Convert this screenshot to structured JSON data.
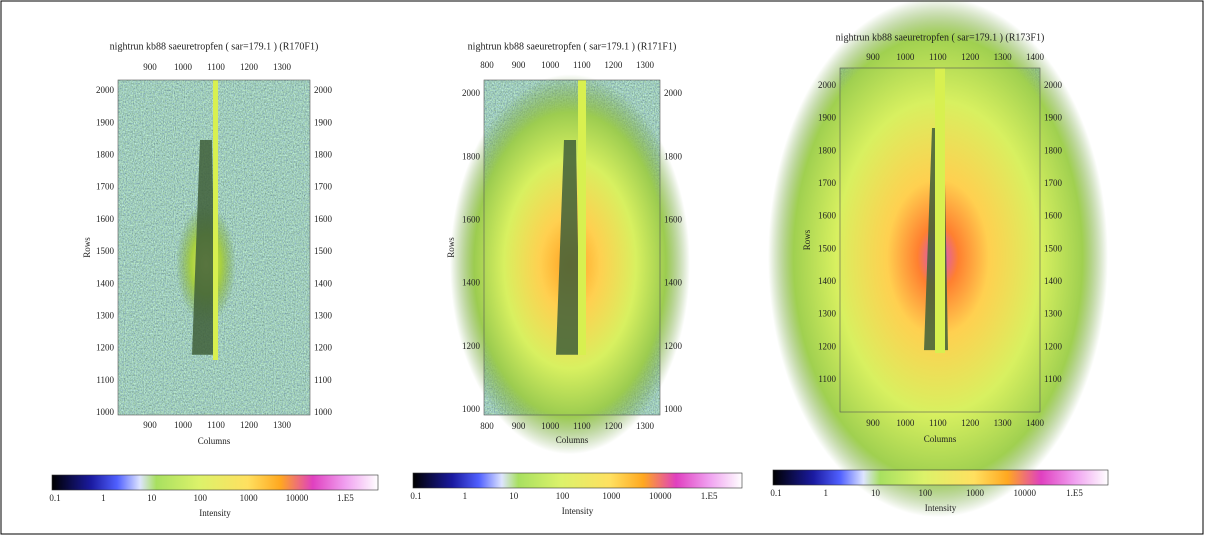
{
  "panels": [
    {
      "title": "nightrun kb88 saeuretropfen ( sar=179.1 ) (R170F1)",
      "x_label": "Columns",
      "y_label": "Rows",
      "x_ticks": [
        900,
        1000,
        1100,
        1200,
        1300
      ],
      "y_ticks": [
        2000,
        1900,
        1800,
        1700,
        1600,
        1500,
        1400,
        1300,
        1200,
        1100,
        1000
      ],
      "colorbar_labels": [
        "0.1",
        "1",
        "10",
        "100",
        "1000",
        "10000",
        "1.E5"
      ],
      "colorbar_title": "Intensity"
    },
    {
      "title": "nightrun kb88 saeuretropfen ( sar=179.1 ) (R171F1)",
      "x_label": "Columns",
      "y_label": "Rows",
      "x_ticks": [
        800,
        900,
        1000,
        1100,
        1200,
        1300
      ],
      "y_ticks": [
        2000,
        1800,
        1600,
        1400,
        1200,
        1000
      ],
      "colorbar_labels": [
        "0.1",
        "1",
        "10",
        "100",
        "1000",
        "10000",
        "1.E5"
      ],
      "colorbar_title": "Intensity"
    },
    {
      "title": "nightrun kb88 saeuretropfen ( sar=179.1 ) (R173F1)",
      "x_label": "Columns",
      "y_label": "Rows",
      "x_ticks": [
        900,
        1000,
        1100,
        1200,
        1300,
        1400
      ],
      "y_ticks": [
        2000,
        1900,
        1800,
        1700,
        1600,
        1500,
        1400,
        1300,
        1200,
        1100
      ],
      "colorbar_labels": [
        "0.1",
        "1",
        "10",
        "100",
        "1000",
        "10000",
        "1.E5"
      ],
      "colorbar_title": "Intensity"
    }
  ]
}
